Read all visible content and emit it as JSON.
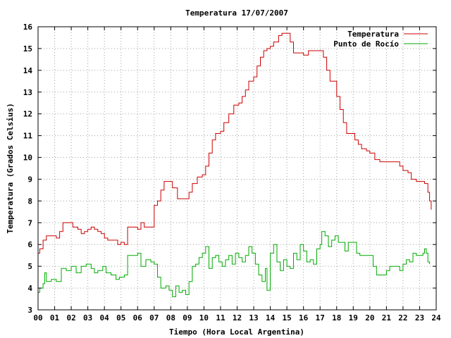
{
  "chart_data": {
    "type": "line",
    "title": "Temperatura 17/07/2007",
    "xlabel": "Tiempo (Hora Local Argentina)",
    "ylabel": "Temperatura (Grados Celsius)",
    "xlim": [
      0,
      24
    ],
    "ylim": [
      3,
      16
    ],
    "grid": true,
    "legend_position": "top-right",
    "x_ticks": [
      "00",
      "01",
      "02",
      "03",
      "04",
      "05",
      "06",
      "07",
      "08",
      "09",
      "10",
      "11",
      "12",
      "13",
      "14",
      "15",
      "16",
      "17",
      "18",
      "19",
      "20",
      "21",
      "22",
      "23",
      "24"
    ],
    "y_ticks": [
      "3",
      "4",
      "5",
      "6",
      "7",
      "8",
      "9",
      "10",
      "11",
      "12",
      "13",
      "14",
      "15",
      "16"
    ],
    "series": [
      {
        "name": "Temperatura",
        "color": "#cc0000",
        "points": [
          [
            0.0,
            5.6
          ],
          [
            0.1,
            5.8
          ],
          [
            0.3,
            6.2
          ],
          [
            0.5,
            6.4
          ],
          [
            0.8,
            6.4
          ],
          [
            1.1,
            6.3
          ],
          [
            1.3,
            6.6
          ],
          [
            1.5,
            7.0
          ],
          [
            1.9,
            7.0
          ],
          [
            2.1,
            6.8
          ],
          [
            2.4,
            6.7
          ],
          [
            2.6,
            6.5
          ],
          [
            2.8,
            6.6
          ],
          [
            3.0,
            6.7
          ],
          [
            3.2,
            6.8
          ],
          [
            3.4,
            6.7
          ],
          [
            3.6,
            6.6
          ],
          [
            3.8,
            6.5
          ],
          [
            4.0,
            6.3
          ],
          [
            4.2,
            6.2
          ],
          [
            4.5,
            6.2
          ],
          [
            4.8,
            6.0
          ],
          [
            5.0,
            6.1
          ],
          [
            5.2,
            6.0
          ],
          [
            5.4,
            6.8
          ],
          [
            5.8,
            6.8
          ],
          [
            6.0,
            6.7
          ],
          [
            6.2,
            7.0
          ],
          [
            6.4,
            6.8
          ],
          [
            6.7,
            6.8
          ],
          [
            7.0,
            7.8
          ],
          [
            7.2,
            8.0
          ],
          [
            7.4,
            8.5
          ],
          [
            7.6,
            8.9
          ],
          [
            7.9,
            8.9
          ],
          [
            8.1,
            8.6
          ],
          [
            8.4,
            8.1
          ],
          [
            8.7,
            8.1
          ],
          [
            8.9,
            8.1
          ],
          [
            9.1,
            8.4
          ],
          [
            9.3,
            8.8
          ],
          [
            9.6,
            9.1
          ],
          [
            9.9,
            9.2
          ],
          [
            10.1,
            9.6
          ],
          [
            10.3,
            10.2
          ],
          [
            10.5,
            10.8
          ],
          [
            10.7,
            11.1
          ],
          [
            11.0,
            11.2
          ],
          [
            11.2,
            11.6
          ],
          [
            11.5,
            12.0
          ],
          [
            11.8,
            12.4
          ],
          [
            12.1,
            12.5
          ],
          [
            12.3,
            12.8
          ],
          [
            12.5,
            13.1
          ],
          [
            12.7,
            13.5
          ],
          [
            13.0,
            13.7
          ],
          [
            13.2,
            14.2
          ],
          [
            13.4,
            14.6
          ],
          [
            13.6,
            14.9
          ],
          [
            13.8,
            15.0
          ],
          [
            14.0,
            15.1
          ],
          [
            14.2,
            15.3
          ],
          [
            14.5,
            15.6
          ],
          [
            14.7,
            15.7
          ],
          [
            15.0,
            15.7
          ],
          [
            15.2,
            15.3
          ],
          [
            15.4,
            14.8
          ],
          [
            15.7,
            14.8
          ],
          [
            16.0,
            14.7
          ],
          [
            16.3,
            14.9
          ],
          [
            16.6,
            14.9
          ],
          [
            17.0,
            14.9
          ],
          [
            17.2,
            14.6
          ],
          [
            17.4,
            14.0
          ],
          [
            17.6,
            13.5
          ],
          [
            17.9,
            13.5
          ],
          [
            18.0,
            12.8
          ],
          [
            18.2,
            12.2
          ],
          [
            18.4,
            11.6
          ],
          [
            18.6,
            11.1
          ],
          [
            18.9,
            11.1
          ],
          [
            19.1,
            10.8
          ],
          [
            19.3,
            10.6
          ],
          [
            19.5,
            10.4
          ],
          [
            19.8,
            10.3
          ],
          [
            20.0,
            10.2
          ],
          [
            20.3,
            9.9
          ],
          [
            20.6,
            9.8
          ],
          [
            20.9,
            9.8
          ],
          [
            21.2,
            9.8
          ],
          [
            21.5,
            9.8
          ],
          [
            21.8,
            9.6
          ],
          [
            22.0,
            9.4
          ],
          [
            22.3,
            9.3
          ],
          [
            22.5,
            9.0
          ],
          [
            22.8,
            8.9
          ],
          [
            23.0,
            8.9
          ],
          [
            23.3,
            8.8
          ],
          [
            23.5,
            8.4
          ],
          [
            23.6,
            8.0
          ],
          [
            23.7,
            7.6
          ]
        ]
      },
      {
        "name": "Punto de Rocío",
        "color": "#00aa00",
        "points": [
          [
            0.0,
            3.8
          ],
          [
            0.1,
            4.0
          ],
          [
            0.3,
            4.2
          ],
          [
            0.4,
            4.7
          ],
          [
            0.5,
            4.3
          ],
          [
            0.8,
            4.4
          ],
          [
            1.1,
            4.3
          ],
          [
            1.4,
            4.9
          ],
          [
            1.7,
            4.8
          ],
          [
            2.0,
            5.0
          ],
          [
            2.3,
            4.7
          ],
          [
            2.6,
            5.0
          ],
          [
            2.9,
            5.1
          ],
          [
            3.2,
            4.9
          ],
          [
            3.4,
            4.7
          ],
          [
            3.6,
            4.8
          ],
          [
            3.9,
            5.0
          ],
          [
            4.1,
            4.7
          ],
          [
            4.4,
            4.6
          ],
          [
            4.7,
            4.4
          ],
          [
            4.9,
            4.5
          ],
          [
            5.2,
            4.6
          ],
          [
            5.4,
            5.5
          ],
          [
            5.7,
            5.5
          ],
          [
            6.0,
            5.6
          ],
          [
            6.2,
            5.0
          ],
          [
            6.5,
            5.3
          ],
          [
            6.8,
            5.2
          ],
          [
            7.0,
            5.1
          ],
          [
            7.2,
            4.5
          ],
          [
            7.4,
            4.0
          ],
          [
            7.7,
            4.1
          ],
          [
            7.9,
            3.9
          ],
          [
            8.1,
            3.6
          ],
          [
            8.3,
            4.1
          ],
          [
            8.5,
            3.8
          ],
          [
            8.7,
            3.9
          ],
          [
            8.9,
            3.7
          ],
          [
            9.1,
            4.3
          ],
          [
            9.3,
            5.0
          ],
          [
            9.5,
            5.1
          ],
          [
            9.7,
            5.4
          ],
          [
            9.9,
            5.6
          ],
          [
            10.1,
            5.9
          ],
          [
            10.3,
            4.9
          ],
          [
            10.5,
            5.4
          ],
          [
            10.7,
            5.5
          ],
          [
            10.9,
            5.2
          ],
          [
            11.1,
            5.0
          ],
          [
            11.3,
            5.3
          ],
          [
            11.5,
            5.5
          ],
          [
            11.7,
            5.1
          ],
          [
            11.9,
            5.6
          ],
          [
            12.1,
            5.4
          ],
          [
            12.3,
            5.2
          ],
          [
            12.5,
            5.5
          ],
          [
            12.7,
            5.9
          ],
          [
            12.9,
            5.6
          ],
          [
            13.1,
            5.1
          ],
          [
            13.3,
            4.6
          ],
          [
            13.5,
            4.3
          ],
          [
            13.7,
            4.9
          ],
          [
            13.8,
            3.9
          ],
          [
            14.0,
            5.6
          ],
          [
            14.2,
            6.0
          ],
          [
            14.4,
            5.2
          ],
          [
            14.6,
            4.8
          ],
          [
            14.8,
            5.3
          ],
          [
            15.0,
            5.0
          ],
          [
            15.2,
            4.9
          ],
          [
            15.4,
            5.6
          ],
          [
            15.6,
            5.3
          ],
          [
            15.8,
            6.0
          ],
          [
            16.0,
            5.7
          ],
          [
            16.2,
            5.2
          ],
          [
            16.4,
            5.3
          ],
          [
            16.6,
            5.1
          ],
          [
            16.8,
            5.8
          ],
          [
            17.0,
            6.0
          ],
          [
            17.1,
            6.6
          ],
          [
            17.3,
            6.4
          ],
          [
            17.5,
            5.9
          ],
          [
            17.7,
            6.2
          ],
          [
            17.9,
            6.4
          ],
          [
            18.1,
            6.1
          ],
          [
            18.3,
            6.1
          ],
          [
            18.5,
            5.7
          ],
          [
            18.7,
            6.1
          ],
          [
            19.0,
            6.1
          ],
          [
            19.2,
            5.6
          ],
          [
            19.4,
            5.5
          ],
          [
            19.6,
            5.5
          ],
          [
            19.8,
            5.5
          ],
          [
            20.0,
            5.5
          ],
          [
            20.2,
            5.0
          ],
          [
            20.4,
            4.6
          ],
          [
            20.6,
            4.6
          ],
          [
            20.8,
            4.6
          ],
          [
            21.0,
            4.8
          ],
          [
            21.2,
            5.0
          ],
          [
            21.4,
            5.0
          ],
          [
            21.6,
            5.0
          ],
          [
            21.8,
            4.8
          ],
          [
            22.0,
            5.1
          ],
          [
            22.2,
            5.3
          ],
          [
            22.4,
            5.2
          ],
          [
            22.6,
            5.6
          ],
          [
            22.8,
            5.5
          ],
          [
            23.0,
            5.5
          ],
          [
            23.2,
            5.6
          ],
          [
            23.3,
            5.8
          ],
          [
            23.4,
            5.6
          ],
          [
            23.5,
            5.2
          ],
          [
            23.6,
            5.1
          ]
        ]
      }
    ]
  }
}
